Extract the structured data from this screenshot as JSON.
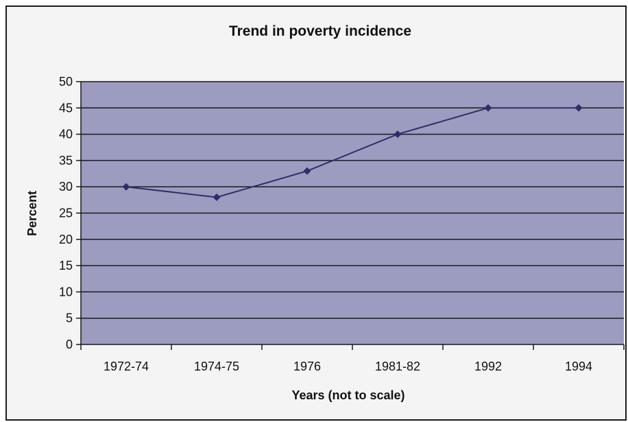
{
  "chart_data": {
    "type": "line",
    "title": "Trend in poverty incidence",
    "xlabel": "Years (not to scale)",
    "ylabel": "Percent",
    "categories": [
      "1972-74",
      "1974-75",
      "1976",
      "1981-82",
      "1992",
      "1994"
    ],
    "series": [
      {
        "values": [
          30,
          28,
          33,
          40,
          45,
          45
        ]
      }
    ],
    "ylim": [
      0,
      50
    ],
    "yticks": [
      0,
      5,
      10,
      15,
      20,
      25,
      30,
      35,
      40,
      45,
      50
    ],
    "grid": true,
    "legend": "none",
    "colors": {
      "plot_background": "#9c9cc0",
      "gridline": "#1a1a1a",
      "line": "#2e2e6a",
      "marker": "#2e2e6a"
    }
  }
}
